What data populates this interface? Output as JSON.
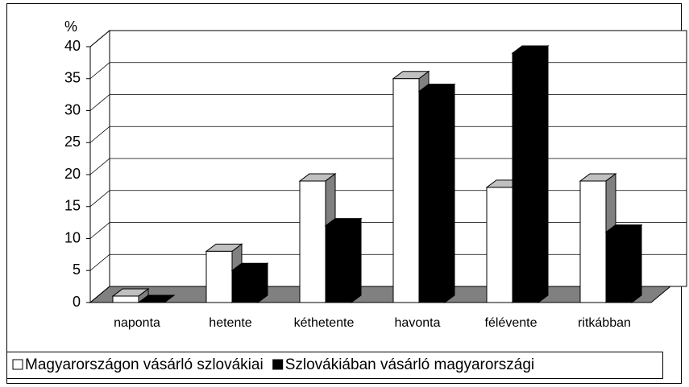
{
  "chart_data": {
    "type": "bar",
    "y_axis_label": "%",
    "categories": [
      "naponta",
      "hetente",
      "kéthetente",
      "havonta",
      "félévente",
      "ritkábban"
    ],
    "series": [
      {
        "name": "Magyarországon vásárló szlovákiai",
        "color": "#ffffff",
        "values": [
          1,
          8,
          19,
          35,
          18,
          19
        ]
      },
      {
        "name": "Szlovákiában vásárló magyarországi",
        "color": "#000000",
        "values": [
          0,
          5,
          12,
          33,
          39,
          11
        ]
      }
    ],
    "ylim": [
      0,
      40
    ],
    "yticks": [
      0,
      5,
      10,
      15,
      20,
      25,
      30,
      35,
      40
    ],
    "grid": true,
    "legend": "bottom"
  }
}
